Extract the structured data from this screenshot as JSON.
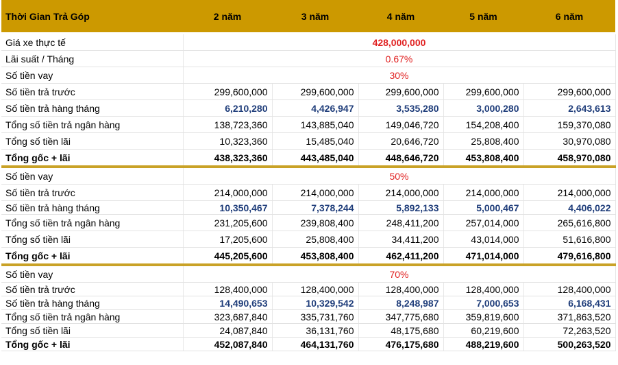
{
  "header": {
    "label": "Thời Gian Trả Góp",
    "years": [
      "2 năm",
      "3 năm",
      "4 năm",
      "5 năm",
      "6 năm"
    ]
  },
  "top": {
    "price_label": "Giá xe thực tế",
    "price_value": "428,000,000",
    "rate_label": "Lãi suất / Tháng",
    "rate_value": "0.67%"
  },
  "colors": {
    "header_bg": "#cc9900",
    "accent_red": "#e02020",
    "monthly_blue": "#1f3d7a",
    "separator": "#c9a227"
  },
  "sections": [
    {
      "loan_label": "Số tiền vay",
      "loan_pct": "30%",
      "rows": [
        {
          "label": "Số tiền trả trước",
          "values": [
            "299,600,000",
            "299,600,000",
            "299,600,000",
            "299,600,000",
            "299,600,000"
          ]
        },
        {
          "label": "Số tiền trả hàng tháng",
          "values": [
            "6,210,280",
            "4,426,947",
            "3,535,280",
            "3,000,280",
            "2,643,613"
          ]
        },
        {
          "label": "Tổng số tiền trả ngân hàng",
          "values": [
            "138,723,360",
            "143,885,040",
            "149,046,720",
            "154,208,400",
            "159,370,080"
          ]
        },
        {
          "label": "Tổng số tiền lãi",
          "values": [
            "10,323,360",
            "15,485,040",
            "20,646,720",
            "25,808,400",
            "30,970,080"
          ]
        },
        {
          "label": "Tổng gốc + lãi",
          "values": [
            "438,323,360",
            "443,485,040",
            "448,646,720",
            "453,808,400",
            "458,970,080"
          ]
        }
      ]
    },
    {
      "loan_label": "Số tiền vay",
      "loan_pct": "50%",
      "rows": [
        {
          "label": "Số tiền trả trước",
          "values": [
            "214,000,000",
            "214,000,000",
            "214,000,000",
            "214,000,000",
            "214,000,000"
          ]
        },
        {
          "label": "Số tiền trả hàng tháng",
          "values": [
            "10,350,467",
            "7,378,244",
            "5,892,133",
            "5,000,467",
            "4,406,022"
          ]
        },
        {
          "label": "Tổng số tiền trả ngân hàng",
          "values": [
            "231,205,600",
            "239,808,400",
            "248,411,200",
            "257,014,000",
            "265,616,800"
          ]
        },
        {
          "label": "Tổng số tiền lãi",
          "values": [
            "17,205,600",
            "25,808,400",
            "34,411,200",
            "43,014,000",
            "51,616,800"
          ]
        },
        {
          "label": "Tổng gốc + lãi",
          "values": [
            "445,205,600",
            "453,808,400",
            "462,411,200",
            "471,014,000",
            "479,616,800"
          ]
        }
      ]
    },
    {
      "loan_label": "Số tiền vay",
      "loan_pct": "70%",
      "rows": [
        {
          "label": "Số tiền trả trước",
          "values": [
            "128,400,000",
            "128,400,000",
            "128,400,000",
            "128,400,000",
            "128,400,000"
          ]
        },
        {
          "label": "Số tiền trả hàng tháng",
          "values": [
            "14,490,653",
            "10,329,542",
            "8,248,987",
            "7,000,653",
            "6,168,431"
          ]
        },
        {
          "label": "Tổng số tiền trả ngân hàng",
          "values": [
            "323,687,840",
            "335,731,760",
            "347,775,680",
            "359,819,600",
            "371,863,520"
          ]
        },
        {
          "label": "Tổng số tiền lãi",
          "values": [
            "24,087,840",
            "36,131,760",
            "48,175,680",
            "60,219,600",
            "72,263,520"
          ]
        },
        {
          "label": "Tổng gốc + lãi",
          "values": [
            "452,087,840",
            "464,131,760",
            "476,175,680",
            "488,219,600",
            "500,263,520"
          ]
        }
      ]
    }
  ]
}
